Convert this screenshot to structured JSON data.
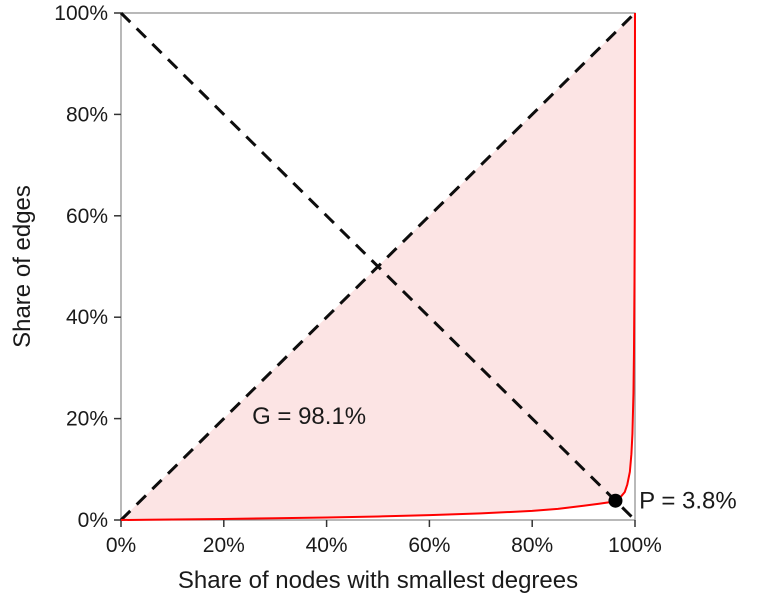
{
  "chart_data": {
    "type": "line",
    "title": "",
    "xlabel": "Share of nodes with smallest degrees",
    "ylabel": "Share of edges",
    "xlim": [
      0,
      100
    ],
    "ylim": [
      0,
      100
    ],
    "grid": false,
    "legend": "none",
    "x_ticks": [
      {
        "value": 0,
        "label": "0%"
      },
      {
        "value": 20,
        "label": "20%"
      },
      {
        "value": 40,
        "label": "40%"
      },
      {
        "value": 60,
        "label": "60%"
      },
      {
        "value": 80,
        "label": "80%"
      },
      {
        "value": 100,
        "label": "100%"
      }
    ],
    "y_ticks": [
      {
        "value": 0,
        "label": "0%"
      },
      {
        "value": 20,
        "label": "20%"
      },
      {
        "value": 40,
        "label": "40%"
      },
      {
        "value": 60,
        "label": "60%"
      },
      {
        "value": 80,
        "label": "80%"
      },
      {
        "value": 100,
        "label": "100%"
      }
    ],
    "series": [
      {
        "name": "lorenz-curve",
        "color": "#ff0000",
        "width": 2,
        "points": [
          [
            0,
            0
          ],
          [
            5,
            0.05
          ],
          [
            10,
            0.1
          ],
          [
            20,
            0.2
          ],
          [
            30,
            0.35
          ],
          [
            40,
            0.5
          ],
          [
            50,
            0.7
          ],
          [
            60,
            0.95
          ],
          [
            70,
            1.3
          ],
          [
            80,
            1.8
          ],
          [
            85,
            2.2
          ],
          [
            90,
            2.8
          ],
          [
            93,
            3.2
          ],
          [
            95,
            3.5
          ],
          [
            96.2,
            3.8
          ],
          [
            97,
            4.3
          ],
          [
            98,
            5.5
          ],
          [
            98.5,
            7
          ],
          [
            99,
            9.5
          ],
          [
            99.3,
            13
          ],
          [
            99.5,
            17
          ],
          [
            99.7,
            25
          ],
          [
            99.8,
            33
          ],
          [
            99.9,
            47
          ],
          [
            99.95,
            60
          ],
          [
            100,
            100
          ]
        ]
      }
    ],
    "reference_lines": [
      {
        "name": "equality-diagonal",
        "from": [
          0,
          0
        ],
        "to": [
          100,
          100
        ],
        "style": "dashed",
        "color": "#0d0d0d",
        "width": 3
      },
      {
        "name": "anti-diagonal",
        "from": [
          0,
          100
        ],
        "to": [
          100,
          0
        ],
        "style": "dashed",
        "color": "#0d0d0d",
        "width": 3
      }
    ],
    "shaded_area": {
      "name": "gini-area",
      "fill": "#fce4e4",
      "between": "equality-diagonal-and-lorenz-curve"
    },
    "markers": [
      {
        "name": "p-point",
        "x": 96.2,
        "y": 3.8,
        "color": "#000000",
        "radius": 7
      }
    ],
    "annotations": [
      {
        "name": "gini-label",
        "text": "G = 98.1%",
        "x": 25.5,
        "y": 20.5,
        "anchor": "start"
      },
      {
        "name": "p-label",
        "text": "P = 3.8%",
        "x": 100.8,
        "y": 3.8,
        "anchor": "start"
      }
    ],
    "colors": {
      "axis_border": "#8a8a8a",
      "tick": "#333333",
      "text": "#1a1a1a"
    }
  }
}
